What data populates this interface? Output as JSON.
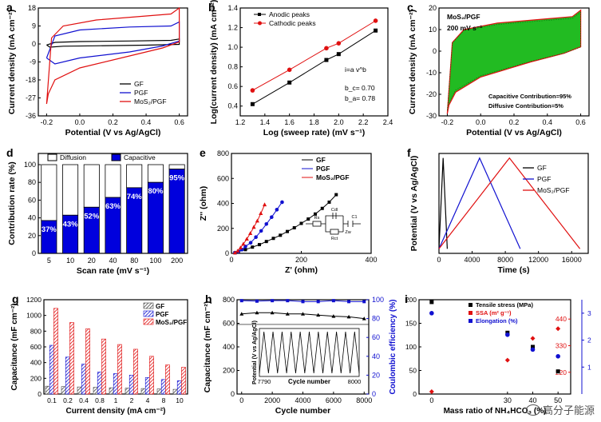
{
  "panels": [
    {
      "id": "a",
      "label": "a"
    },
    {
      "id": "b",
      "label": "b"
    },
    {
      "id": "c",
      "label": "c"
    },
    {
      "id": "d",
      "label": "d"
    },
    {
      "id": "e",
      "label": "e"
    },
    {
      "id": "f",
      "label": "f"
    },
    {
      "id": "g",
      "label": "g"
    },
    {
      "id": "h",
      "label": "h"
    },
    {
      "id": "i",
      "label": "i"
    }
  ],
  "watermark": "高分子能源",
  "chart_data": [
    {
      "id": "a",
      "type": "line",
      "title": "",
      "xlabel": "Potential (V vs Ag/AgCl)",
      "ylabel": "Current density (mA cm⁻²)",
      "xlim": [
        -0.25,
        0.65
      ],
      "ylim": [
        -36,
        18
      ],
      "xticks": [
        -0.2,
        0.0,
        0.2,
        0.4,
        0.6
      ],
      "xtick_labels": [
        "-0.2",
        "0.0",
        "0.2",
        "0.4",
        "0.6"
      ],
      "yticks": [
        -36,
        -27,
        -18,
        -9,
        0,
        9,
        18
      ],
      "ytick_labels": [
        "-36",
        "-27",
        "-18",
        "-9",
        "0",
        "9",
        "18"
      ],
      "legend": [
        "GF",
        "PGF",
        "MoS₂/PGF"
      ],
      "series": [
        {
          "name": "GF",
          "color": "#000000",
          "upper": [
            [
              -0.2,
              -0.5
            ],
            [
              -0.15,
              0.8
            ],
            [
              0.0,
              1.2
            ],
            [
              0.3,
              1.5
            ],
            [
              0.55,
              1.8
            ],
            [
              0.6,
              2.5
            ]
          ],
          "lower": [
            [
              0.6,
              -0.2
            ],
            [
              0.4,
              -0.6
            ],
            [
              0.1,
              -0.9
            ],
            [
              -0.1,
              -1.1
            ],
            [
              -0.18,
              -1.6
            ],
            [
              -0.2,
              -0.5
            ]
          ]
        },
        {
          "name": "PGF",
          "color": "#1010d0",
          "upper": [
            [
              -0.2,
              -7
            ],
            [
              -0.15,
              4
            ],
            [
              0.0,
              7
            ],
            [
              0.3,
              8.5
            ],
            [
              0.55,
              9
            ],
            [
              0.6,
              11
            ]
          ],
          "lower": [
            [
              0.6,
              1.5
            ],
            [
              0.5,
              -1
            ],
            [
              0.3,
              -4
            ],
            [
              0.0,
              -7
            ],
            [
              -0.15,
              -10
            ],
            [
              -0.2,
              -7
            ]
          ]
        },
        {
          "name": "MoS₂/PGF",
          "color": "#e01010",
          "upper": [
            [
              -0.2,
              -30
            ],
            [
              -0.17,
              3
            ],
            [
              -0.1,
              9
            ],
            [
              0.1,
              12
            ],
            [
              0.4,
              14
            ],
            [
              0.55,
              15
            ],
            [
              0.6,
              18
            ]
          ],
          "lower": [
            [
              0.6,
              1
            ],
            [
              0.5,
              -2
            ],
            [
              0.3,
              -6
            ],
            [
              0.0,
              -12
            ],
            [
              -0.15,
              -18
            ],
            [
              -0.19,
              -25
            ],
            [
              -0.2,
              -30
            ]
          ]
        }
      ]
    },
    {
      "id": "b",
      "type": "line",
      "title": "",
      "xlabel": "Log (sweep rate) (mV s⁻¹)",
      "ylabel": "Log(current density) (mA cm⁻²)",
      "xlim": [
        1.2,
        2.4
      ],
      "ylim": [
        0.3,
        1.4
      ],
      "xticks": [
        1.2,
        1.4,
        1.6,
        1.8,
        2.0,
        2.2,
        2.4
      ],
      "xtick_labels": [
        "1.2",
        "1.4",
        "1.6",
        "1.8",
        "2.0",
        "2.2",
        "2.4"
      ],
      "yticks": [
        0.4,
        0.6,
        0.8,
        1.0,
        1.2,
        1.4
      ],
      "ytick_labels": [
        "0.4",
        "0.6",
        "0.8",
        "1.0",
        "1.2",
        "1.4"
      ],
      "legend": [
        "Anodic peaks",
        "Cathodic peaks"
      ],
      "series": [
        {
          "name": "Anodic peaks",
          "color": "#000000",
          "marker": "square",
          "x": [
            1.3,
            1.6,
            1.9,
            2.0,
            2.3
          ],
          "y": [
            0.42,
            0.64,
            0.87,
            0.93,
            1.17
          ]
        },
        {
          "name": "Cathodic peaks",
          "color": "#e01010",
          "marker": "circle",
          "x": [
            1.3,
            1.6,
            1.9,
            2.0,
            2.3
          ],
          "y": [
            0.56,
            0.77,
            0.99,
            1.04,
            1.27
          ]
        }
      ],
      "annotations": [
        "i=a v^b",
        "b_c= 0.70",
        "b_a= 0.78"
      ]
    },
    {
      "id": "c",
      "type": "area",
      "title": "MoS₂/PGF",
      "subtitle": "200 mV s⁻¹",
      "xlabel": "Potential (V vs Ag/AgCl)",
      "ylabel": "Current density (mA cm⁻²)",
      "xlim": [
        -0.25,
        0.65
      ],
      "ylim": [
        -30,
        20
      ],
      "xticks": [
        -0.2,
        0.0,
        0.2,
        0.4,
        0.6
      ],
      "xtick_labels": [
        "-0.2",
        "0.0",
        "0.2",
        "0.4",
        "0.6"
      ],
      "yticks": [
        -30,
        -20,
        -10,
        0,
        10,
        20
      ],
      "ytick_labels": [
        "-30",
        "-20",
        "-10",
        "0",
        "10",
        "20"
      ],
      "annotations": [
        "Capacitive Contribution=95%",
        "Diffusive Contribution=5%"
      ],
      "outer": [
        [
          -0.2,
          -29
        ],
        [
          -0.17,
          4
        ],
        [
          -0.1,
          10
        ],
        [
          0.1,
          13
        ],
        [
          0.4,
          15
        ],
        [
          0.55,
          16
        ],
        [
          0.6,
          19
        ],
        [
          0.6,
          2
        ],
        [
          0.5,
          -1
        ],
        [
          0.3,
          -5
        ],
        [
          0.0,
          -12
        ],
        [
          -0.15,
          -19
        ],
        [
          -0.19,
          -25
        ],
        [
          -0.2,
          -29
        ]
      ],
      "fill_color": "#22bb22",
      "line_color": "#e01010"
    },
    {
      "id": "d",
      "type": "bar",
      "title": "",
      "xlabel": "Scan rate (mV s⁻¹)",
      "ylabel": "Contribution rate (%)",
      "categories": [
        "5",
        "10",
        "20",
        "40",
        "80",
        "100",
        "200"
      ],
      "legend": [
        "Diffusion",
        "Capacitive"
      ],
      "series": [
        {
          "name": "Capacitive",
          "color": "#0000dd",
          "values": [
            37,
            43,
            52,
            63,
            74,
            80,
            95
          ]
        },
        {
          "name": "Diffusion",
          "color": "#ffffff",
          "values": [
            63,
            57,
            48,
            37,
            26,
            20,
            5
          ]
        }
      ],
      "value_labels": [
        "37%",
        "43%",
        "52%",
        "63%",
        "74%",
        "80%",
        "95%"
      ],
      "ylim": [
        0,
        100
      ],
      "yticks": [
        0,
        20,
        40,
        60,
        80,
        100
      ],
      "ytick_labels": [
        "0",
        "20",
        "40",
        "60",
        "80",
        "100"
      ]
    },
    {
      "id": "e",
      "type": "scatter",
      "title": "",
      "xlabel": "Z' (ohm)",
      "ylabel": "Z'' (ohm)",
      "xlim": [
        0,
        400
      ],
      "ylim": [
        0,
        800
      ],
      "xticks": [
        0,
        200,
        400
      ],
      "xtick_labels": [
        "0",
        "200",
        "400"
      ],
      "yticks": [
        0,
        200,
        400,
        600,
        800
      ],
      "ytick_labels": [
        "0",
        "200",
        "400",
        "600",
        "800"
      ],
      "legend": [
        "GF",
        "PGF",
        "MoS₂/PGF"
      ],
      "series": [
        {
          "name": "GF",
          "color": "#000000",
          "marker": "square",
          "x": [
            10,
            20,
            40,
            60,
            80,
            100,
            120,
            140,
            160,
            180,
            200,
            220,
            240,
            260,
            280,
            300
          ],
          "y": [
            5,
            15,
            30,
            50,
            70,
            95,
            120,
            145,
            175,
            205,
            240,
            275,
            315,
            360,
            410,
            470
          ]
        },
        {
          "name": "PGF",
          "color": "#1010d0",
          "marker": "circle",
          "x": [
            10,
            20,
            30,
            40,
            55,
            70,
            85,
            100,
            115,
            130,
            145
          ],
          "y": [
            5,
            15,
            30,
            55,
            85,
            130,
            180,
            235,
            290,
            350,
            410
          ]
        },
        {
          "name": "MoS₂/PGF",
          "color": "#e01010",
          "marker": "triangle",
          "x": [
            10,
            18,
            26,
            34,
            44,
            54,
            64,
            74,
            84,
            95
          ],
          "y": [
            5,
            20,
            45,
            75,
            115,
            160,
            210,
            260,
            320,
            390
          ]
        }
      ],
      "circuit_labels": [
        "Rs",
        "Rct",
        "Zw",
        "Cdl",
        "C1"
      ]
    },
    {
      "id": "f",
      "type": "line",
      "title": "",
      "xlabel": "Time (s)",
      "ylabel": "Potential (V vs Ag/AgCl)",
      "xlim": [
        0,
        18000
      ],
      "ylim": [
        -0.25,
        0.85
      ],
      "xticks": [
        0,
        4000,
        8000,
        12000,
        16000
      ],
      "xtick_labels": [
        "0",
        "4000",
        "8000",
        "12000",
        "16000"
      ],
      "legend": [
        "GF",
        "PGF",
        "MoS₂/PGF"
      ],
      "series": [
        {
          "name": "GF",
          "color": "#000000",
          "x": [
            0,
            500,
            1000
          ],
          "y": [
            -0.2,
            0.8,
            -0.2
          ]
        },
        {
          "name": "PGF",
          "color": "#1010d0",
          "x": [
            0,
            4900,
            9800
          ],
          "y": [
            -0.2,
            0.8,
            -0.2
          ]
        },
        {
          "name": "MoS₂/PGF",
          "color": "#e01010",
          "x": [
            0,
            8500,
            17000
          ],
          "y": [
            -0.2,
            0.8,
            -0.2
          ]
        }
      ]
    },
    {
      "id": "g",
      "type": "bar",
      "title": "",
      "xlabel": "Current density (mA cm⁻²)",
      "ylabel": "Capacitance (mF cm⁻²)",
      "categories": [
        "0.1",
        "0.2",
        "0.4",
        "0.8",
        "1",
        "2",
        "4",
        "8",
        "10"
      ],
      "ylim": [
        0,
        1200
      ],
      "yticks": [
        0,
        200,
        400,
        600,
        800,
        1000,
        1200
      ],
      "ytick_labels": [
        "0",
        "200",
        "400",
        "600",
        "800",
        "1000",
        "1200"
      ],
      "legend": [
        "GF",
        "PGF",
        "MoS₂/PGF"
      ],
      "series": [
        {
          "name": "GF",
          "color": "#444444",
          "values": [
            100,
            95,
            90,
            85,
            80,
            75,
            70,
            65,
            60
          ]
        },
        {
          "name": "PGF",
          "color": "#1010d0",
          "values": [
            620,
            470,
            380,
            280,
            260,
            240,
            210,
            185,
            170
          ]
        },
        {
          "name": "MoS₂/PGF",
          "color": "#e01010",
          "values": [
            1090,
            910,
            830,
            700,
            630,
            570,
            480,
            370,
            340
          ]
        }
      ]
    },
    {
      "id": "h",
      "type": "line",
      "title": "",
      "xlabel": "Cycle number",
      "ylabel": "Capacitance (mF cm⁻²)",
      "y2label": "Coulombic efficiency (%)",
      "xlim": [
        -300,
        8300
      ],
      "ylim": [
        0,
        800
      ],
      "y2lim": [
        0,
        100
      ],
      "xticks": [
        0,
        2000,
        4000,
        6000,
        8000
      ],
      "xtick_labels": [
        "0",
        "2000",
        "4000",
        "6000",
        "8000"
      ],
      "yticks": [
        0,
        200,
        400,
        600,
        800
      ],
      "ytick_labels": [
        "0",
        "200",
        "400",
        "600",
        "800"
      ],
      "y2ticks": [
        0,
        20,
        40,
        60,
        80,
        100
      ],
      "y2tick_labels": [
        "0",
        "20",
        "40",
        "60",
        "80",
        "100"
      ],
      "series": [
        {
          "name": "Capacitance",
          "color": "#000000",
          "x": [
            0,
            1000,
            2000,
            3000,
            4000,
            5000,
            6000,
            7000,
            8000
          ],
          "y": [
            680,
            690,
            690,
            680,
            680,
            670,
            660,
            655,
            640
          ]
        },
        {
          "name": "Coulombic efficiency",
          "color": "#1010d0",
          "axis": "y2",
          "x": [
            0,
            1000,
            2000,
            3000,
            4000,
            5000,
            6000,
            7000,
            8000
          ],
          "y": [
            99,
            98.5,
            99,
            99,
            98,
            98,
            99,
            98,
            98
          ]
        }
      ],
      "inset": {
        "xlabel": "Cycle number",
        "ylabel": "Potential (V vs Ag/AgCl)",
        "xtick_labels": [
          "7790",
          "8000"
        ],
        "cycles": 11
      },
      "ref_line_y": 590
    },
    {
      "id": "i",
      "type": "scatter",
      "title": "",
      "xlabel": "Mass ratio of NH₄HCO₃ (%)",
      "xlim": [
        -5,
        55
      ],
      "xticks": [
        0,
        30,
        40,
        50
      ],
      "xtick_labels": [
        "0",
        "30",
        "40",
        "50"
      ],
      "ylim": [
        0,
        200
      ],
      "yticks": [
        0,
        50,
        100,
        150,
        200
      ],
      "ytick_labels": [
        "0",
        "50",
        "100",
        "150",
        "200"
      ],
      "y2lim": [
        130,
        520
      ],
      "y2ticks": [
        220,
        330,
        440
      ],
      "y2tick_labels": [
        "220",
        "330",
        "440"
      ],
      "y3lim": [
        0,
        3.5
      ],
      "y3ticks": [
        1,
        2,
        3
      ],
      "y3tick_labels": [
        "1",
        "2",
        "3"
      ],
      "legend": [
        "Tensile stress (MPa)",
        "SSA (m² g⁻¹)",
        "Elongation (%)"
      ],
      "series": [
        {
          "name": "Tensile stress (MPa)",
          "color": "#000000",
          "axis": "y",
          "x": [
            0,
            30,
            40,
            50
          ],
          "y": [
            195,
            130,
            100,
            48
          ]
        },
        {
          "name": "SSA (m² g⁻¹)",
          "color": "#e01010",
          "axis": "y2",
          "x": [
            0,
            30,
            40,
            50
          ],
          "y": [
            140,
            270,
            360,
            400
          ]
        },
        {
          "name": "Elongation (%)",
          "color": "#1010d0",
          "axis": "y3",
          "x": [
            0,
            30,
            40,
            50
          ],
          "y": [
            3.0,
            2.2,
            1.65,
            1.4
          ]
        }
      ]
    }
  ]
}
